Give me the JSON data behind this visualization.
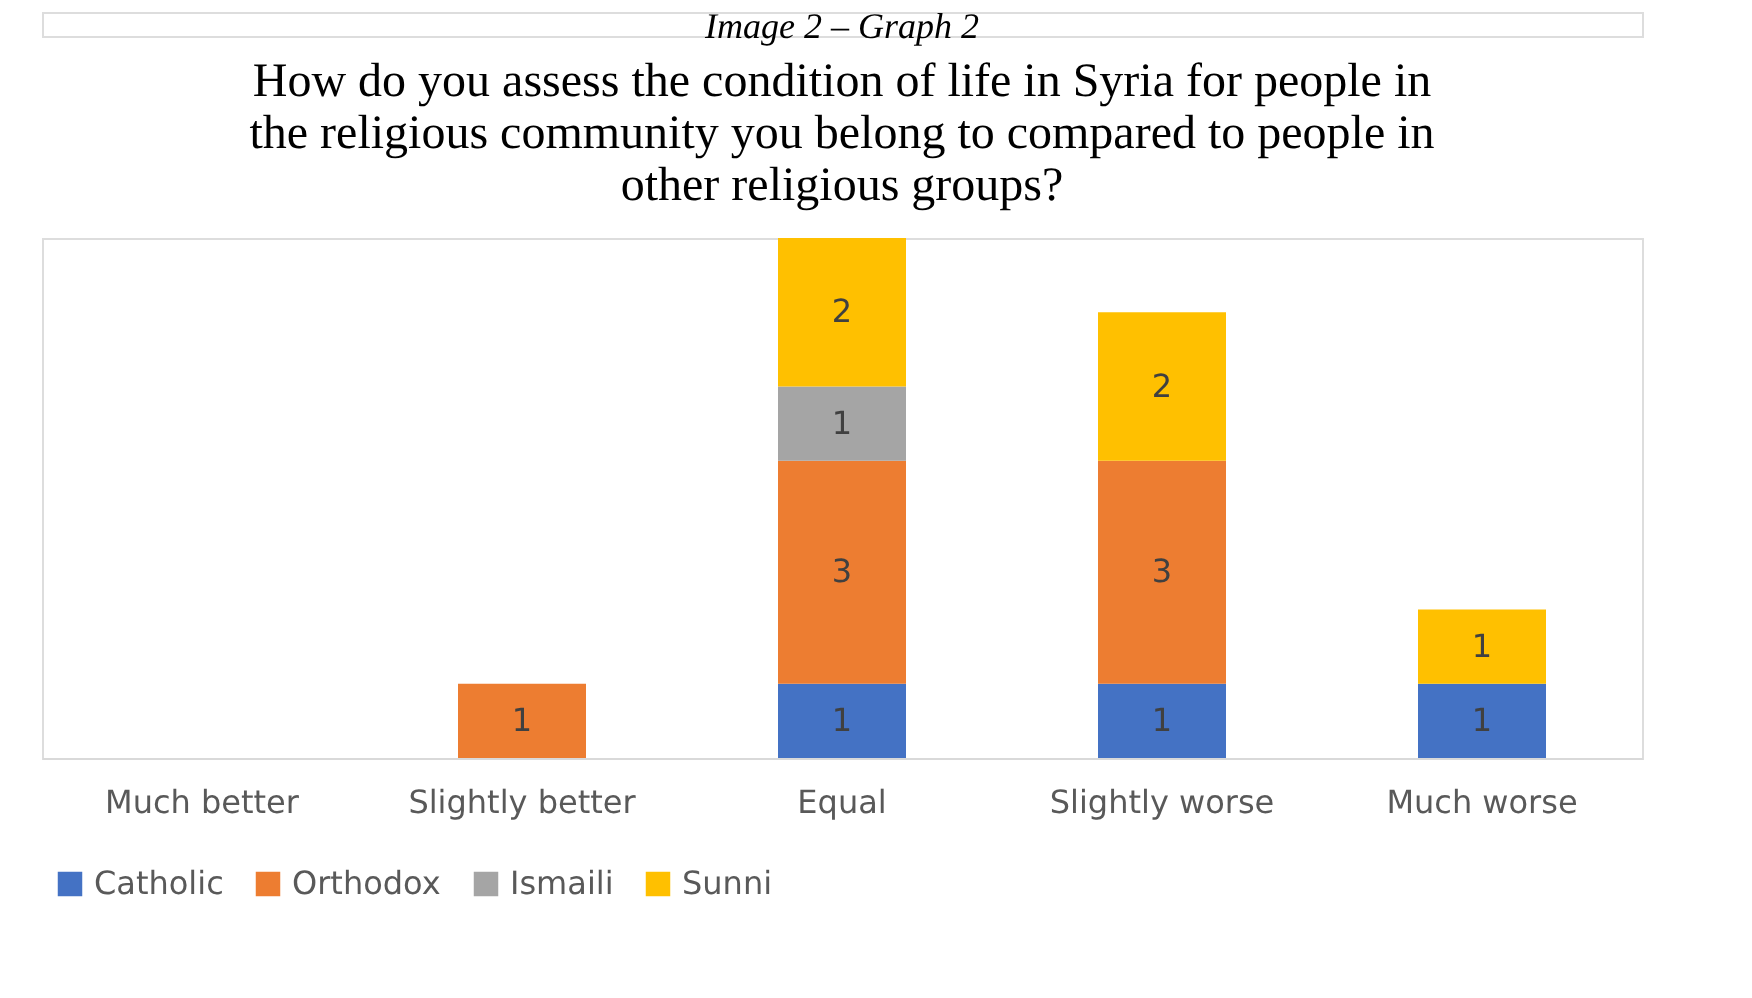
{
  "chart_data": {
    "type": "bar",
    "stacked": true,
    "title": "How do you assess the condition of life in Syria for people in the religious community you belong to compared to people in other religious groups?",
    "annotations": [
      "Image 2 – Graph 2"
    ],
    "categories": [
      "Much better",
      "Slightly better",
      "Equal",
      "Slightly worse",
      "Much worse"
    ],
    "series": [
      {
        "name": "Catholic",
        "color": "#4472c4",
        "values": [
          null,
          null,
          1,
          1,
          1
        ]
      },
      {
        "name": "Orthodox",
        "color": "#ed7d31",
        "values": [
          null,
          1,
          3,
          3,
          null
        ]
      },
      {
        "name": "Ismaili",
        "color": "#a5a5a5",
        "values": [
          null,
          null,
          1,
          null,
          null
        ]
      },
      {
        "name": "Sunni",
        "color": "#ffc000",
        "values": [
          null,
          null,
          2,
          2,
          1
        ]
      }
    ],
    "data_labels": true,
    "legend": "bottom",
    "grid": false
  }
}
